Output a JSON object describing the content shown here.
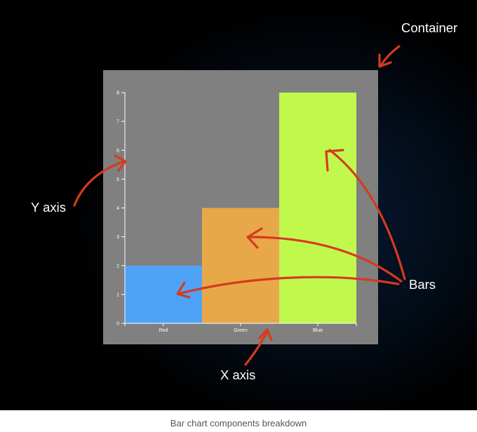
{
  "callouts": {
    "container": "Container",
    "y_axis": "Y axis",
    "x_axis": "X axis",
    "bars": "Bars"
  },
  "caption": "Bar chart components breakdown",
  "colors": {
    "background": "#000000",
    "container": "#808080",
    "axis": "#ffffff",
    "arrow": "#d63a1e",
    "red_bar": "#4fa3f7",
    "green_bar": "#e8a84a",
    "blue_bar": "#c1f84c"
  },
  "chart_data": {
    "type": "bar",
    "categories": [
      "Red",
      "Green",
      "Blue"
    ],
    "values": [
      2,
      4,
      8
    ],
    "bar_colors": [
      "#4fa3f7",
      "#e8a84a",
      "#c1f84c"
    ],
    "yticks": [
      0,
      1,
      2,
      3,
      4,
      5,
      6,
      7,
      8
    ],
    "ylim": [
      0,
      8
    ],
    "title": "",
    "xlabel": "",
    "ylabel": "",
    "grid": false
  }
}
